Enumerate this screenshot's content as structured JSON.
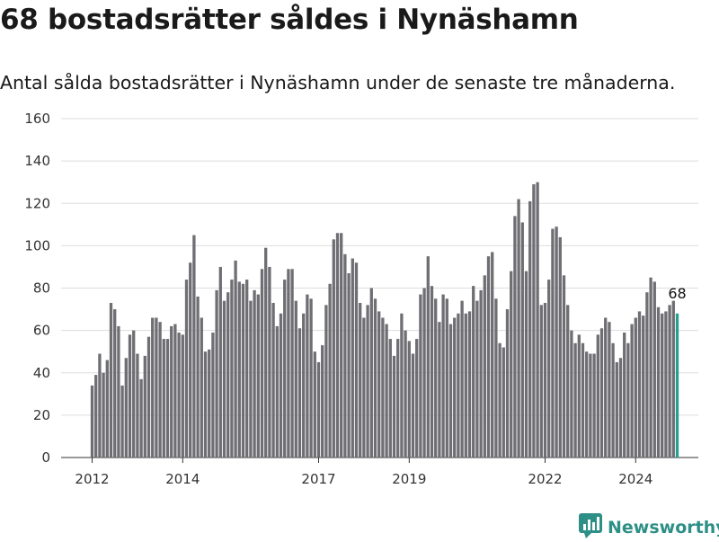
{
  "title": "68 bostadsrätter såldes i Nynäshamn",
  "subtitle": "Antal sålda bostadsrätter i Nynäshamn under de senaste tre månaderna.",
  "brand": "Newsworthy",
  "colors": {
    "bar": "#6e6e73",
    "highlight": "#2a9d8f",
    "grid": "#dddddd",
    "brand": "#2d8f86"
  },
  "chart_data": {
    "type": "bar",
    "title": "68 bostadsrätter såldes i Nynäshamn",
    "subtitle": "Antal sålda bostadsrätter i Nynäshamn under de senaste tre månaderna.",
    "xlabel": "",
    "ylabel": "",
    "ylim": [
      0,
      160
    ],
    "yticks": [
      0,
      20,
      40,
      60,
      80,
      100,
      120,
      140,
      160
    ],
    "xticks": [
      "2012",
      "2014",
      "2017",
      "2019",
      "2022",
      "2024"
    ],
    "grid": true,
    "data_label": "68",
    "values": [
      34,
      39,
      49,
      40,
      46,
      73,
      70,
      62,
      34,
      47,
      58,
      60,
      49,
      37,
      48,
      57,
      66,
      66,
      64,
      56,
      56,
      62,
      63,
      59,
      58,
      84,
      92,
      105,
      76,
      66,
      50,
      51,
      59,
      79,
      90,
      74,
      78,
      84,
      93,
      83,
      82,
      84,
      74,
      79,
      77,
      89,
      99,
      90,
      73,
      62,
      68,
      84,
      89,
      89,
      74,
      61,
      68,
      77,
      75,
      50,
      45,
      53,
      72,
      82,
      103,
      106,
      106,
      96,
      87,
      94,
      92,
      73,
      66,
      72,
      80,
      75,
      69,
      66,
      63,
      56,
      48,
      56,
      68,
      60,
      55,
      49,
      56,
      77,
      80,
      95,
      81,
      75,
      64,
      77,
      75,
      63,
      66,
      68,
      74,
      68,
      69,
      81,
      74,
      79,
      86,
      95,
      97,
      75,
      54,
      52,
      70,
      88,
      114,
      122,
      111,
      88,
      121,
      129,
      130,
      72,
      73,
      84,
      108,
      109,
      104,
      86,
      72,
      60,
      54,
      58,
      54,
      50,
      49,
      49,
      58,
      61,
      66,
      64,
      54,
      45,
      47,
      59,
      54,
      63,
      66,
      69,
      67,
      78,
      85,
      83,
      71,
      68,
      69,
      72,
      74,
      68
    ]
  }
}
